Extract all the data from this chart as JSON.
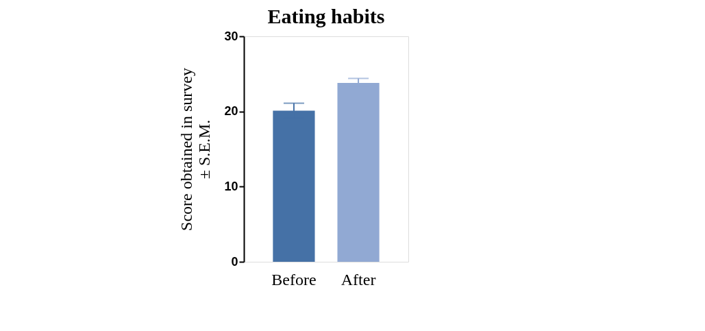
{
  "chart_data": {
    "type": "bar",
    "title": "Eating habits",
    "ylabel": "Score obtained in survey\n± S.E.M.",
    "categories": [
      "Before",
      "After"
    ],
    "values": [
      20.1,
      23.8
    ],
    "colors": [
      "#4571a6",
      "#91a9d3"
    ],
    "errors": [
      1.0,
      0.6
    ],
    "ylim": [
      0,
      30
    ],
    "yticks": [
      0,
      10,
      20,
      30
    ],
    "grid": false
  }
}
